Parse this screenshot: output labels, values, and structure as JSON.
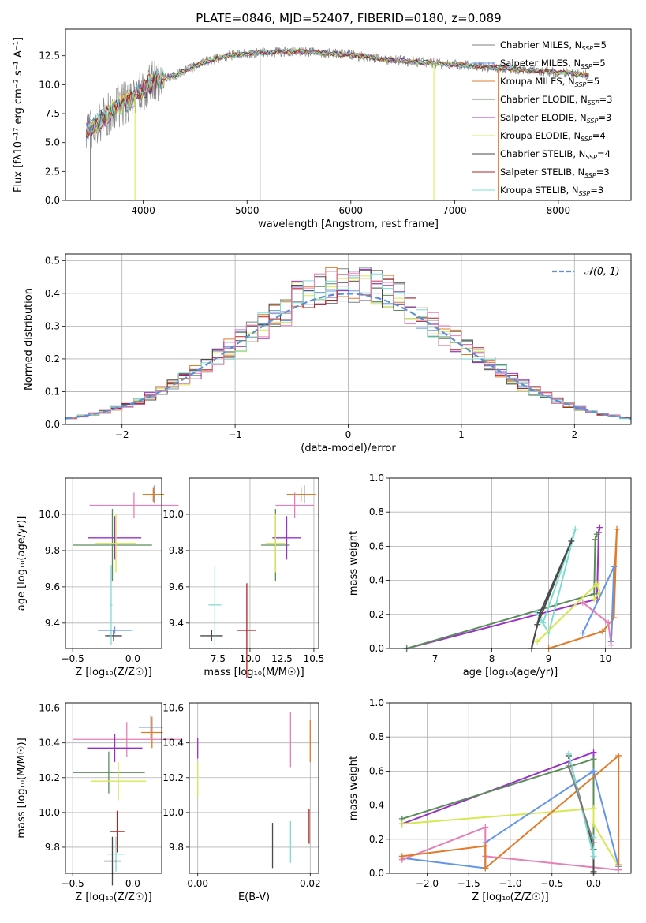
{
  "figure_title": "PLATE=0846, MJD=52407, FIBERID=0180, z=0.089",
  "colors": {
    "Chabrier MILES": "#808080",
    "Salpeter MILES": "#6495ed",
    "Kroupa MILES": "#e07b2a",
    "Chabrier ELODIE": "#5b8c5a",
    "Salpeter ELODIE": "#9b30c8",
    "Kroupa ELODIE": "#d7e84f",
    "Chabrier STELIB": "#4a4a4a",
    "Salpeter STELIB": "#b22222",
    "Kroupa STELIB": "#7fdcd0",
    "gaussian": "#5b8fd6",
    "extra_pink": "#e67fb6",
    "extra_blue": "#6495ed"
  },
  "chart_data": [
    {
      "id": "spectrum",
      "type": "line",
      "title": "PLATE=0846, MJD=52407, FIBERID=0180, z=0.089",
      "xlabel": "wavelength [Angstrom, rest frame]",
      "ylabel": "Flux [fλ10⁻¹⁷ erg cm⁻² s⁻¹ A⁻¹]",
      "xlim": [
        3250,
        8700
      ],
      "ylim": [
        0,
        14.8
      ],
      "xticks": [
        "4000",
        "5000",
        "6000",
        "7000",
        "8000"
      ],
      "yticks": [
        "0.0",
        "2.5",
        "5.0",
        "7.5",
        "10.0",
        "12.5"
      ],
      "grid": false,
      "legend_position": "right",
      "legend": [
        "Chabrier MILES, N_SSP=5",
        "Salpeter MILES, N_SSP=5",
        "Kroupa MILES, N_SSP=5",
        "Chabrier ELODIE, N_SSP=3",
        "Salpeter ELODIE, N_SSP=3",
        "Kroupa ELODIE, N_SSP=4",
        "Chabrier STELIB, N_SSP=4",
        "Salpeter STELIB, N_SSP=3",
        "Kroupa STELIB, N_SSP=3"
      ],
      "continuum": {
        "x": [
          3450,
          3600,
          3700,
          3800,
          3900,
          4000,
          4100,
          4200,
          4300,
          4400,
          4600,
          4800,
          5000,
          5200,
          5500,
          5800,
          6000,
          6300,
          6600,
          6900,
          7200,
          7500,
          7800,
          8100,
          8300
        ],
        "y": [
          6.0,
          7.0,
          7.8,
          8.3,
          8.8,
          9.6,
          10.3,
          10.5,
          10.8,
          11.2,
          12.0,
          12.5,
          12.7,
          12.8,
          12.9,
          12.7,
          12.6,
          12.2,
          12.0,
          11.8,
          11.6,
          11.4,
          11.2,
          11.0,
          10.8
        ]
      }
    },
    {
      "id": "residuals",
      "type": "line",
      "xlabel": "(data-model)/error",
      "ylabel": "Normed distribution",
      "xlim": [
        -2.5,
        2.5
      ],
      "ylim": [
        0,
        0.52
      ],
      "xticks": [
        "−2",
        "−1",
        "0",
        "1",
        "2"
      ],
      "yticks": [
        "0.0",
        "0.1",
        "0.2",
        "0.3",
        "0.4",
        "0.5"
      ],
      "grid": true,
      "legend_position": "top-right",
      "legend": [
        "𝒩(0, 1)"
      ],
      "gaussian": {
        "mean": 0,
        "sigma": 1
      }
    },
    {
      "id": "age_vs_Z",
      "type": "scatter",
      "xlabel": "Z [log₁₀(Z/Z☉)]",
      "ylabel": "age  [log₁₀(age/yr)]",
      "xlim": [
        -0.56,
        0.24
      ],
      "ylim": [
        9.26,
        10.2
      ],
      "xticks": [
        "−0.5",
        "0.0"
      ],
      "yticks": [
        "9.4",
        "9.6",
        "9.8",
        "10.0"
      ],
      "grid": true,
      "points": [
        {
          "c": "Chabrier MILES",
          "x": 0.18,
          "xe": 0.05,
          "y": 10.11,
          "ye": 0.05
        },
        {
          "c": "Kroupa MILES",
          "x": 0.17,
          "xe": 0.09,
          "y": 10.11,
          "ye": 0.04
        },
        {
          "c": "extra_pink",
          "x": 0.01,
          "xe": 0.37,
          "y": 10.05,
          "ye": 0.07
        },
        {
          "c": "Chabrier ELODIE",
          "x": -0.17,
          "xe": 0.33,
          "y": 9.83,
          "ye": 0.2
        },
        {
          "c": "Salpeter ELODIE",
          "x": -0.15,
          "xe": 0.22,
          "y": 9.87,
          "ye": 0.12
        },
        {
          "c": "Kroupa ELODIE",
          "x": -0.14,
          "xe": 0.17,
          "y": 9.84,
          "ye": 0.16
        },
        {
          "c": "Chabrier STELIB",
          "x": -0.16,
          "xe": 0.07,
          "y": 9.33,
          "ye": 0.03
        },
        {
          "c": "Kroupa STELIB",
          "x": -0.18,
          "xe": 0.01,
          "y": 9.5,
          "ye": 0.22
        },
        {
          "c": "extra_blue",
          "x": -0.15,
          "xe": 0.14,
          "y": 9.36,
          "ye": 0.02
        }
      ]
    },
    {
      "id": "age_vs_mass",
      "type": "scatter",
      "xlabel": "mass [log₁₀(M/M☉)]",
      "ylabel": "",
      "xlim": [
        6.6,
        10.65
      ],
      "ylim": [
        9.26,
        10.2
      ],
      "xticks": [
        "7.5",
        "10.0",
        "12.5",
        "10.5"
      ],
      "yticks": [
        "9.4",
        "9.6",
        "9.8",
        "10.0"
      ],
      "grid": true,
      "points": [
        {
          "c": "Chabrier MILES",
          "x": 10.2,
          "xe": 0.3,
          "y": 10.11,
          "ye": 0.05
        },
        {
          "c": "Kroupa MILES",
          "x": 10.1,
          "xe": 0.45,
          "y": 10.11,
          "ye": 0.04
        },
        {
          "c": "extra_pink",
          "x": 9.9,
          "xe": 0.6,
          "y": 10.05,
          "ye": 0.07
        },
        {
          "c": "Chabrier ELODIE",
          "x": 9.3,
          "xe": 0.45,
          "y": 9.83,
          "ye": 0.2
        },
        {
          "c": "Salpeter ELODIE",
          "x": 9.65,
          "xe": 0.45,
          "y": 9.87,
          "ye": 0.12
        },
        {
          "c": "Kroupa ELODIE",
          "x": 9.3,
          "xe": 0.3,
          "y": 9.84,
          "ye": 0.16
        },
        {
          "c": "Chabrier STELIB",
          "x": 7.3,
          "xe": 0.35,
          "y": 9.33,
          "ye": 0.03
        },
        {
          "c": "Salpeter STELIB",
          "x": 8.4,
          "xe": 0.3,
          "y": 9.36,
          "ye": 0.26
        },
        {
          "c": "Kroupa STELIB",
          "x": 7.4,
          "xe": 0.2,
          "y": 9.5,
          "ye": 0.22
        }
      ]
    },
    {
      "id": "massweight_vs_age",
      "type": "line",
      "xlabel": "age  [log₁₀(age/yr)]",
      "ylabel": "mass weight",
      "xlim": [
        6.2,
        10.45
      ],
      "ylim": [
        0,
        1.0
      ],
      "xticks": [
        "7",
        "8",
        "9",
        "10"
      ],
      "yticks": [
        "0.0",
        "0.2",
        "0.4",
        "0.6",
        "0.8",
        "1.0"
      ],
      "grid": true,
      "series": [
        {
          "c": "Salpeter ELODIE",
          "x": [
            6.5,
            9.85,
            9.88,
            9.9
          ],
          "y": [
            0.0,
            0.29,
            0.68,
            0.71
          ]
        },
        {
          "c": "Chabrier ELODIE",
          "x": [
            6.5,
            9.8,
            9.82,
            9.85
          ],
          "y": [
            0.0,
            0.32,
            0.64,
            0.67
          ]
        },
        {
          "c": "Kroupa STELIB",
          "x": [
            8.8,
            9.0,
            9.47,
            8.9,
            8.85
          ],
          "y": [
            0.21,
            0.09,
            0.7,
            0.15,
            0.18
          ]
        },
        {
          "c": "Chabrier STELIB",
          "x": [
            8.7,
            8.85,
            9.4,
            8.8
          ],
          "y": [
            0.0,
            0.21,
            0.63,
            0.14
          ]
        },
        {
          "c": "Kroupa ELODIE",
          "x": [
            8.8,
            9.85,
            9.9,
            9.8
          ],
          "y": [
            0.04,
            0.38,
            0.33,
            0.29
          ]
        },
        {
          "c": "Kroupa MILES",
          "x": [
            9.0,
            9.95,
            10.15,
            10.2,
            10.1
          ],
          "y": [
            0.0,
            0.1,
            0.18,
            0.7,
            0.04
          ]
        },
        {
          "c": "extra_blue",
          "x": [
            9.6,
            10.15,
            10.1
          ],
          "y": [
            0.09,
            0.48,
            0.04
          ]
        },
        {
          "c": "extra_pink",
          "x": [
            9.6,
            10.05,
            10.1
          ],
          "y": [
            0.27,
            0.15,
            0.02
          ]
        }
      ]
    },
    {
      "id": "mass_vs_Z",
      "type": "scatter",
      "xlabel": "Z [log₁₀(Z/Z☉)]",
      "ylabel": "mass [log₁₀(M/M☉)]",
      "xlim": [
        -0.56,
        0.24
      ],
      "ylim": [
        9.65,
        10.63
      ],
      "xticks": [
        "−0.5",
        "0.0"
      ],
      "yticks": [
        "9.8",
        "10.0",
        "10.2",
        "10.4",
        "10.6"
      ],
      "grid": true,
      "points": [
        {
          "c": "extra_blue",
          "x": 0.15,
          "xe": 0.1,
          "y": 10.49,
          "ye": 0.07
        },
        {
          "c": "Kroupa MILES",
          "x": 0.16,
          "xe": 0.09,
          "y": 10.46,
          "ye": 0.09
        },
        {
          "c": "extra_pink",
          "x": -0.05,
          "xe": 0.45,
          "y": 10.42,
          "ye": 0.1
        },
        {
          "c": "Salpeter ELODIE",
          "x": -0.15,
          "xe": 0.23,
          "y": 10.37,
          "ye": 0.08
        },
        {
          "c": "Chabrier ELODIE",
          "x": -0.2,
          "xe": 0.3,
          "y": 10.23,
          "ye": 0.12
        },
        {
          "c": "Kroupa ELODIE",
          "x": -0.12,
          "xe": 0.23,
          "y": 10.18,
          "ye": 0.11
        },
        {
          "c": "Salpeter STELIB",
          "x": -0.13,
          "xe": 0.06,
          "y": 9.89,
          "ye": 0.12
        },
        {
          "c": "Kroupa STELIB",
          "x": -0.14,
          "xe": 0.07,
          "y": 9.76,
          "ye": 0.1
        },
        {
          "c": "Chabrier STELIB",
          "x": -0.17,
          "xe": 0.07,
          "y": 9.72,
          "ye": 0.14
        }
      ]
    },
    {
      "id": "mass_vs_ebv",
      "type": "scatter",
      "xlabel": "E(B-V)",
      "ylabel": "",
      "xlim": [
        -0.0015,
        0.0215
      ],
      "ylim": [
        9.65,
        10.63
      ],
      "xticks": [
        "0.00",
        "0.02"
      ],
      "yticks": [
        "9.8",
        "10.0",
        "10.2",
        "10.4",
        "10.6"
      ],
      "grid": true,
      "points": [
        {
          "c": "Salpeter ELODIE",
          "x": 0.0,
          "xe": 0.0,
          "y": 10.37,
          "ye": 0.06
        },
        {
          "c": "Kroupa ELODIE",
          "x": 0.0,
          "xe": 0.0,
          "y": 10.19,
          "ye": 0.1
        },
        {
          "c": "extra_pink",
          "x": 0.0165,
          "xe": 0.0,
          "y": 10.42,
          "ye": 0.16
        },
        {
          "c": "Kroupa MILES",
          "x": 0.02,
          "xe": 0.0,
          "y": 10.41,
          "ye": 0.12
        },
        {
          "c": "Chabrier STELIB",
          "x": 0.0133,
          "xe": 0.0,
          "y": 9.81,
          "ye": 0.13
        },
        {
          "c": "Kroupa STELIB",
          "x": 0.0165,
          "xe": 0.0,
          "y": 9.83,
          "ye": 0.12
        },
        {
          "c": "Salpeter STELIB",
          "x": 0.0198,
          "xe": 0.0,
          "y": 9.92,
          "ye": 0.1
        }
      ]
    },
    {
      "id": "massweight_vs_Z",
      "type": "line",
      "xlabel": "Z [log₁₀(Z/Z☉)]",
      "ylabel": "mass weight",
      "xlim": [
        -2.45,
        0.45
      ],
      "ylim": [
        0,
        1.0
      ],
      "xticks": [
        "−2.0",
        "−1.5",
        "−1.0",
        "−0.5",
        "0.0"
      ],
      "yticks": [
        "0.0",
        "0.2",
        "0.4",
        "0.6",
        "0.8",
        "1.0"
      ],
      "grid": true,
      "series": [
        {
          "c": "Salpeter ELODIE",
          "x": [
            -2.3,
            0.0,
            0.0
          ],
          "y": [
            0.29,
            0.71,
            0.0
          ]
        },
        {
          "c": "Chabrier ELODIE",
          "x": [
            -2.3,
            0.0,
            0.0
          ],
          "y": [
            0.32,
            0.67,
            0.0
          ]
        },
        {
          "c": "Kroupa ELODIE",
          "x": [
            -2.3,
            0.0,
            0.0,
            0.3
          ],
          "y": [
            0.29,
            0.38,
            0.29,
            0.04
          ]
        },
        {
          "c": "extra_blue",
          "x": [
            -2.3,
            -1.3,
            -1.3,
            0.0,
            0.3
          ],
          "y": [
            0.09,
            0.03,
            0.18,
            0.6,
            0.04
          ]
        },
        {
          "c": "extra_pink",
          "x": [
            -2.3,
            -1.3,
            -1.3,
            0.3
          ],
          "y": [
            0.08,
            0.27,
            0.1,
            0.02
          ]
        },
        {
          "c": "Kroupa MILES",
          "x": [
            -2.3,
            -1.3,
            -1.3,
            0.3,
            0.3
          ],
          "y": [
            0.1,
            0.16,
            0.03,
            0.69,
            0.05
          ]
        },
        {
          "c": "Chabrier STELIB",
          "x": [
            -0.3,
            0.0,
            0.0
          ],
          "y": [
            0.69,
            0.14,
            0.01
          ]
        },
        {
          "c": "Kroupa STELIB",
          "x": [
            -0.3,
            0.0,
            0.0
          ],
          "y": [
            0.7,
            0.1,
            0.21
          ]
        },
        {
          "c": "Chabrier MILES",
          "x": [
            -0.3,
            0.0
          ],
          "y": [
            0.63,
            0.18
          ]
        }
      ]
    }
  ]
}
